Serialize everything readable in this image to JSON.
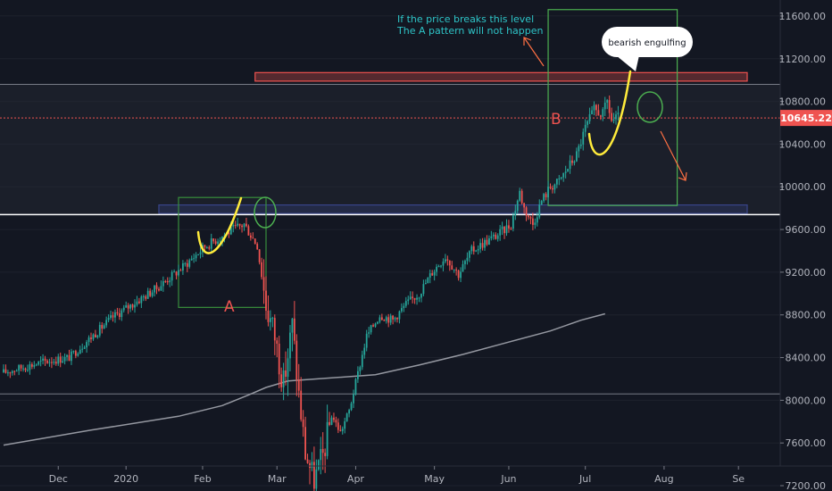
{
  "chart_data": {
    "type": "candlestick",
    "y_axis": {
      "min": 7150,
      "max": 11750,
      "ticks": [
        7200,
        7600,
        8000,
        8400,
        8800,
        9200,
        9600,
        10000,
        10400,
        10800,
        11200,
        11600
      ],
      "tick_labels": [
        "7200.00",
        "7600.00",
        "8000.00",
        "8400.00",
        "8800.00",
        "9200.00",
        "9600.00",
        "10000.00",
        "10400.00",
        "10800.00",
        "11200.00",
        "11600.00"
      ]
    },
    "x_axis": {
      "labels": [
        {
          "text": "Dec",
          "bar": 25
        },
        {
          "text": "2020",
          "bar": 56
        },
        {
          "text": "Feb",
          "bar": 91
        },
        {
          "text": "Mar",
          "bar": 125
        },
        {
          "text": "Apr",
          "bar": 161
        },
        {
          "text": "May",
          "bar": 197
        },
        {
          "text": "Jun",
          "bar": 231
        },
        {
          "text": "Jul",
          "bar": 266
        },
        {
          "text": "Aug",
          "bar": 302
        },
        {
          "text": "Se",
          "bar": 336
        }
      ]
    },
    "last_price": 10645.22,
    "last_price_label": "10645.22",
    "bar_count": 282,
    "price_path": [
      [
        0,
        8260
      ],
      [
        18,
        8360
      ],
      [
        30,
        8400
      ],
      [
        50,
        8780
      ],
      [
        70,
        9050
      ],
      [
        82,
        9250
      ],
      [
        92,
        9440
      ],
      [
        104,
        9590
      ],
      [
        110,
        9650
      ],
      [
        116,
        9450
      ],
      [
        120,
        8900
      ],
      [
        124,
        8600
      ],
      [
        128,
        8150
      ],
      [
        132,
        8700
      ],
      [
        135,
        8050
      ],
      [
        138,
        7500
      ],
      [
        142,
        7250
      ],
      [
        146,
        7480
      ],
      [
        150,
        7860
      ],
      [
        154,
        7700
      ],
      [
        158,
        7900
      ],
      [
        162,
        8250
      ],
      [
        166,
        8600
      ],
      [
        172,
        8800
      ],
      [
        178,
        8750
      ],
      [
        184,
        8900
      ],
      [
        190,
        9000
      ],
      [
        196,
        9200
      ],
      [
        202,
        9350
      ],
      [
        208,
        9180
      ],
      [
        214,
        9400
      ],
      [
        220,
        9480
      ],
      [
        226,
        9550
      ],
      [
        232,
        9650
      ],
      [
        236,
        9950
      ],
      [
        238,
        9800
      ],
      [
        242,
        9650
      ],
      [
        246,
        9870
      ],
      [
        250,
        10000
      ],
      [
        254,
        10050
      ],
      [
        258,
        10180
      ],
      [
        262,
        10300
      ],
      [
        266,
        10550
      ],
      [
        270,
        10720
      ],
      [
        274,
        10680
      ],
      [
        276,
        10800
      ],
      [
        278,
        10620
      ],
      [
        281,
        10645.22
      ]
    ],
    "ma_line": [
      [
        0,
        7580
      ],
      [
        40,
        7720
      ],
      [
        80,
        7850
      ],
      [
        100,
        7950
      ],
      [
        112,
        8050
      ],
      [
        120,
        8120
      ],
      [
        130,
        8180
      ],
      [
        150,
        8210
      ],
      [
        170,
        8240
      ],
      [
        190,
        8330
      ],
      [
        210,
        8430
      ],
      [
        230,
        8540
      ],
      [
        250,
        8650
      ],
      [
        264,
        8750
      ],
      [
        275,
        8810
      ]
    ],
    "zones": [
      {
        "name": "upper-resistance-zone",
        "x0": 115,
        "x1": 340,
        "y0": 10990,
        "y1": 11070,
        "color": "#ef5350"
      },
      {
        "name": "support-zone",
        "x0": 71,
        "x1": 340,
        "y0": 9750,
        "y1": 9830,
        "color": "#3f51b5"
      }
    ],
    "boxes": [
      {
        "name": "pattern-a-box",
        "x0": 80,
        "x1": 120,
        "y0": 8870,
        "y1": 9900
      },
      {
        "name": "pattern-b-box",
        "x0": 249,
        "x1": 308,
        "y0": 9825,
        "y1": 11660
      }
    ],
    "horizontal_lines": [
      {
        "name": "grey-level-line",
        "y": 10960,
        "color": "#787b86"
      },
      {
        "name": "white-support-line",
        "y": 9740,
        "color": "#ffffff"
      },
      {
        "name": "grey-low-line",
        "y": 8060,
        "color": "#787b86"
      },
      {
        "name": "last-price-line",
        "y": 10645.22,
        "color": "#ef5350"
      }
    ],
    "annotations": {
      "note_line1": "If the price breaks this level",
      "note_line2": "The A pattern will not happen",
      "label_a": "A",
      "label_b": "B",
      "bubble": "bearish engulfing"
    }
  }
}
